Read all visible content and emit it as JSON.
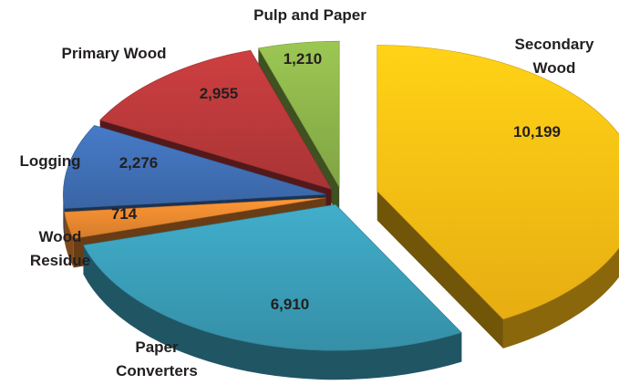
{
  "chart_data": {
    "type": "pie",
    "title": "",
    "slices": [
      {
        "key": "secondary_wood",
        "label": "Secondary Wood",
        "label_lines": [
          "Secondary",
          "Wood"
        ],
        "value": 10199,
        "value_label": "10,199",
        "color": "#fbbc14",
        "exploded": true,
        "value_text_color": "#231f20"
      },
      {
        "key": "paper_converters",
        "label": "Paper Converters",
        "label_lines": [
          "Paper",
          "Converters"
        ],
        "value": 6910,
        "value_label": "6,910",
        "color": "#3a9bb5",
        "exploded": false,
        "value_text_color": "#231f20"
      },
      {
        "key": "wood_residue",
        "label": "Wood Residue",
        "label_lines": [
          "Wood",
          "Residue"
        ],
        "value": 714,
        "value_label": "714",
        "color": "#e8872f",
        "exploded": false,
        "value_text_color": "#231f20"
      },
      {
        "key": "logging",
        "label": "Logging",
        "label_lines": [
          "Logging"
        ],
        "value": 2276,
        "value_label": "2,276",
        "color": "#3f6eb3",
        "exploded": false,
        "value_text_color": "#231f20"
      },
      {
        "key": "primary_wood",
        "label": "Primary Wood",
        "label_lines": [
          "Primary Wood"
        ],
        "value": 2955,
        "value_label": "2,955",
        "color": "#b8383a",
        "exploded": false,
        "value_text_color": "#231f20"
      },
      {
        "key": "pulp_and_paper",
        "label": "Pulp and Paper",
        "label_lines": [
          "Pulp and Paper"
        ],
        "value": 1210,
        "value_label": "1,210",
        "color": "#8bb24a",
        "exploded": false,
        "value_text_color": "#231f20"
      }
    ],
    "style": "3d-exploded-pie",
    "legend": "none"
  }
}
